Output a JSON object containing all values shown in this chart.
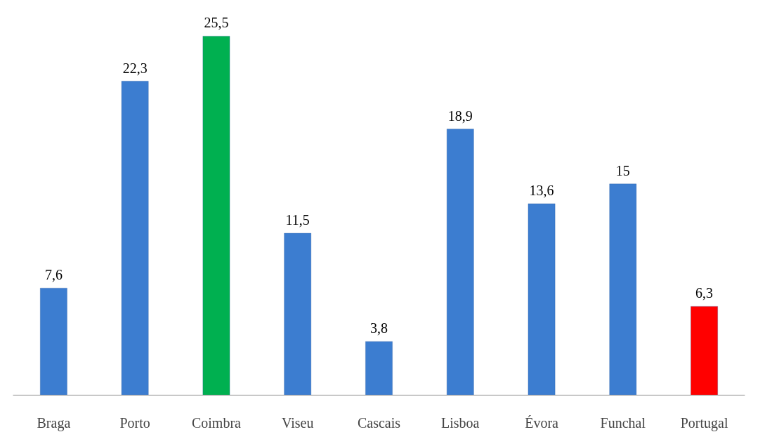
{
  "chart_data": {
    "type": "bar",
    "categories": [
      "Braga",
      "Porto",
      "Coimbra",
      "Viseu",
      "Cascais",
      "Lisboa",
      "Évora",
      "Funchal",
      "Portugal"
    ],
    "values": [
      7.6,
      22.3,
      25.5,
      11.5,
      3.8,
      18.9,
      13.6,
      15,
      6.3
    ],
    "colors": [
      "#3c7dd0",
      "#3c7dd0",
      "#00b050",
      "#3c7dd0",
      "#3c7dd0",
      "#3c7dd0",
      "#3c7dd0",
      "#3c7dd0",
      "#ff0000"
    ],
    "value_labels": [
      "7,6",
      "22,3",
      "25,5",
      "11,5",
      "3,8",
      "18,9",
      "13,6",
      "15",
      "6,3"
    ],
    "grid": false
  }
}
